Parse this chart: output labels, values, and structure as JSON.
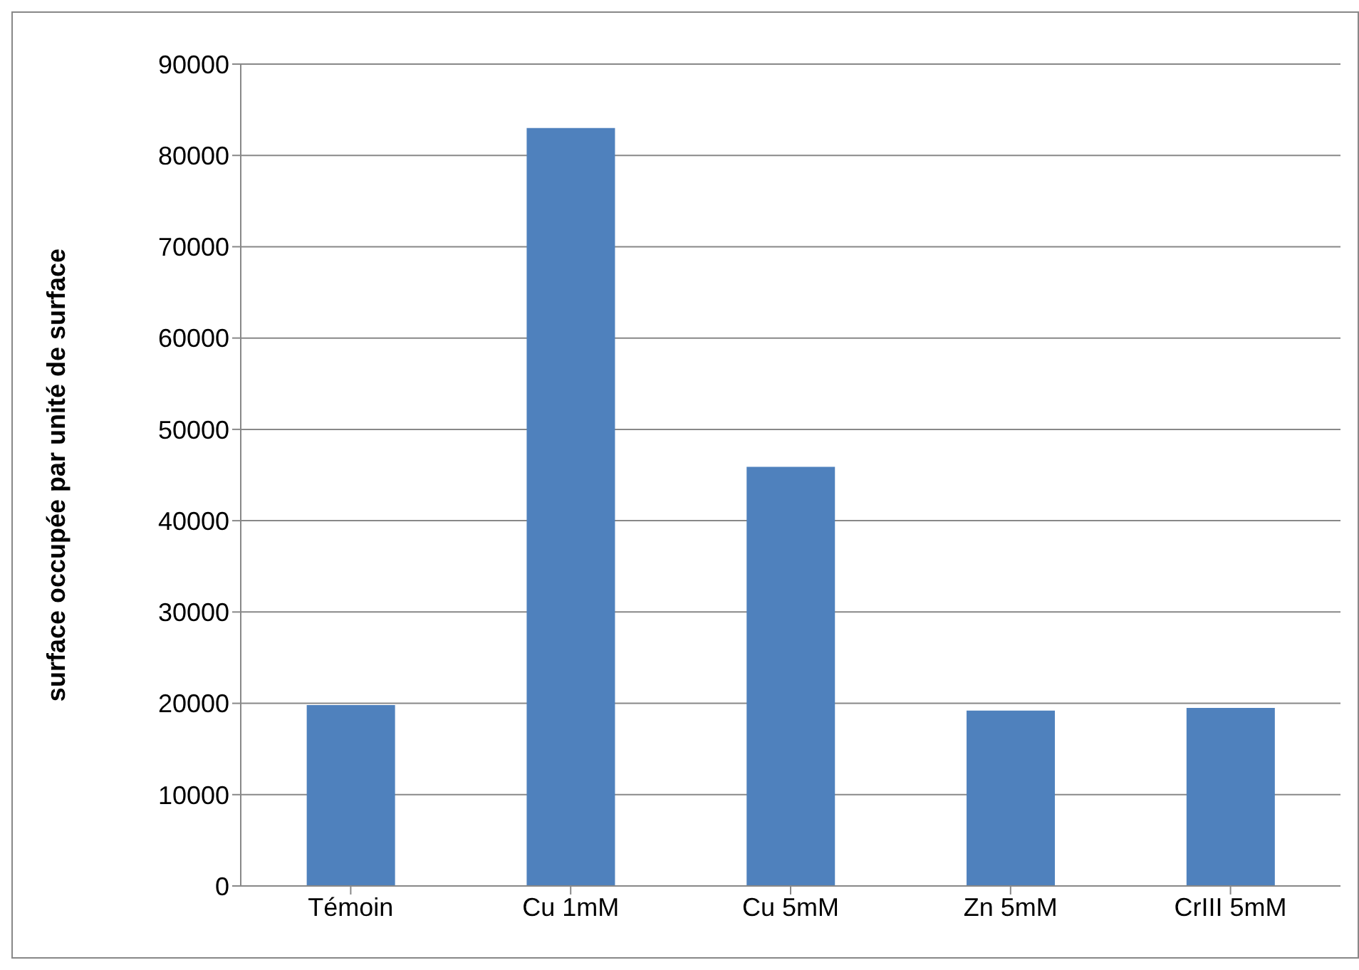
{
  "chart_data": {
    "type": "bar",
    "ylabel": "surface occupée par unité de surface",
    "categories": [
      "Témoin",
      "Cu 1mM",
      "Cu 5mM",
      "Zn 5mM",
      "CrIII 5mM"
    ],
    "values": [
      19800,
      83000,
      45900,
      19200,
      19500
    ],
    "color": "#4f81bd",
    "ylim": [
      0,
      90000
    ],
    "yticks": [
      0,
      10000,
      20000,
      30000,
      40000,
      50000,
      60000,
      70000,
      80000,
      90000
    ],
    "grid": "y"
  }
}
